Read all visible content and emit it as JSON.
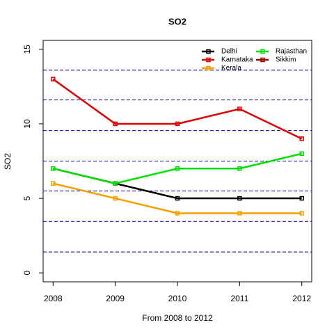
{
  "chart_data": {
    "type": "line",
    "title": "SO2",
    "x_label": "From 2008 to 2012",
    "y_label": "SO2",
    "x": [
      2008,
      2009,
      2010,
      2011,
      2012
    ],
    "series": [
      {
        "name": "Delhi",
        "color": "#000000",
        "values": [
          7,
          6,
          5,
          5,
          5
        ]
      },
      {
        "name": "Karnataka",
        "color": "#dd0000",
        "values": [
          13,
          10,
          10,
          11,
          9
        ]
      },
      {
        "name": "Kerala",
        "color": "#f5a000",
        "values": [
          6,
          5,
          4,
          4,
          4
        ]
      },
      {
        "name": "Rajasthan",
        "color": "#00e000",
        "values": [
          7,
          6,
          7,
          7,
          8
        ]
      },
      {
        "name": "Sikkim",
        "color": "#990000",
        "values": [
          null,
          null,
          null,
          null,
          null
        ]
      }
    ],
    "xlim": [
      2007.84,
      2012.16
    ],
    "xticks": [
      2008,
      2009,
      2010,
      2011,
      2012
    ],
    "ylim": [
      -0.6,
      15.6
    ],
    "yticks": [
      0,
      5,
      10,
      15
    ],
    "hlines": [
      1.4,
      3.45,
      5.5,
      7.5,
      9.55,
      11.6,
      13.6
    ],
    "hline_color": "#0000aa",
    "legend": "top-right"
  }
}
